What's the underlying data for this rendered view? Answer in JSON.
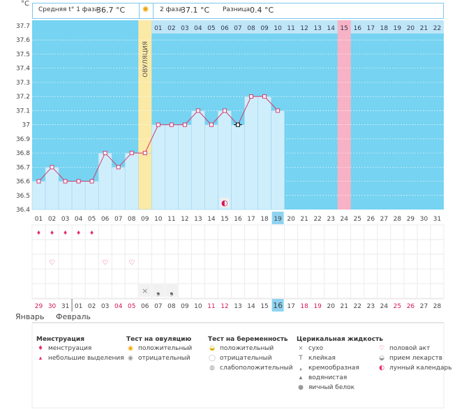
{
  "header": {
    "unit": "°C",
    "phase1_label": "Средняя t° 1 фаза",
    "phase1_value": "36.7 °C",
    "phase2_label": "2 фаза",
    "phase2_value": "37.1 °C",
    "diff_label": "Разница",
    "diff_value": "0.4 °C"
  },
  "chart_data": {
    "type": "line",
    "title": "",
    "ylabel": "°C",
    "ylim": [
      36.4,
      37.7
    ],
    "y_ticks": [
      "37.7",
      "37.6",
      "37.5",
      "37.4",
      "37.3",
      "37.2",
      "37.1",
      "37",
      "36.9",
      "36.8",
      "36.7",
      "36.6",
      "36.5",
      "36.4"
    ],
    "cycle_days": [
      "01",
      "02",
      "03",
      "04",
      "05",
      "06",
      "07",
      "08",
      "09",
      "10",
      "11",
      "12",
      "13",
      "14",
      "15",
      "16",
      "17",
      "18",
      "19",
      "20",
      "21",
      "22",
      "23",
      "24",
      "25",
      "26",
      "27",
      "28",
      "29",
      "30",
      "31"
    ],
    "post_ovulation_days": [
      "01",
      "02",
      "03",
      "04",
      "05",
      "06",
      "07",
      "08",
      "09",
      "10",
      "11",
      "12",
      "13",
      "14",
      "15",
      "16",
      "17",
      "18",
      "19",
      "20",
      "21",
      "22"
    ],
    "series": [
      {
        "name": "Базальная температура",
        "values": [
          36.6,
          36.7,
          36.6,
          36.6,
          36.6,
          36.8,
          36.7,
          36.8,
          36.8,
          37.0,
          37.0,
          37.0,
          37.1,
          37.0,
          37.1,
          37.0,
          37.2,
          37.2,
          37.1
        ]
      }
    ],
    "ovulation_day": 9,
    "ovulation_label": "ОВУЛЯЦИЯ",
    "highlight_day": 24,
    "today_day": 19,
    "moon_marker_day": 15,
    "menstruation_days": [
      1,
      2,
      3,
      4,
      5
    ],
    "sex_days": [
      2,
      6,
      8
    ],
    "fluid_marks": [
      {
        "day": 9,
        "type": "dry"
      },
      {
        "day": 10,
        "type": "creamy"
      },
      {
        "day": 11,
        "type": "creamy"
      }
    ],
    "calendar_dates": [
      "29",
      "30",
      "31",
      "01",
      "02",
      "03",
      "04",
      "05",
      "06",
      "07",
      "08",
      "09",
      "10",
      "11",
      "12",
      "13",
      "14",
      "15",
      "16",
      "17",
      "18",
      "19",
      "20",
      "21",
      "22",
      "23",
      "24",
      "25",
      "26",
      "27",
      "28"
    ],
    "red_date_days": [
      1,
      2,
      7,
      8,
      14,
      15,
      21,
      22,
      28,
      29
    ],
    "today_date_day": 19,
    "months": {
      "january": "Январь",
      "february": "Февраль"
    }
  },
  "legend": {
    "groups": [
      {
        "title": "Менструация",
        "items": [
          {
            "icon": "drop-large-icon",
            "glyph": "♦",
            "label": "менструация"
          },
          {
            "icon": "drop-small-icon",
            "glyph": "▴",
            "label": "небольшие выделения"
          }
        ]
      },
      {
        "title": "Тест на овуляцию",
        "items": [
          {
            "icon": "ovulation-positive-icon",
            "glyph": "◉",
            "label": "положительный"
          },
          {
            "icon": "ovulation-negative-icon",
            "glyph": "◉",
            "label": "отрицательный"
          }
        ]
      },
      {
        "title": "Тест на беременность",
        "items": [
          {
            "icon": "pregnancy-positive-icon",
            "glyph": "◒",
            "label": "положительный"
          },
          {
            "icon": "pregnancy-negative-icon",
            "glyph": "◯",
            "label": "отрицательный"
          },
          {
            "icon": "pregnancy-weak-icon",
            "glyph": "◍",
            "label": "слабоположительный"
          }
        ]
      },
      {
        "title": "Церикальная жидкость",
        "items": [
          {
            "icon": "dry-icon",
            "glyph": "×",
            "label": "сухо"
          },
          {
            "icon": "sticky-icon",
            "glyph": "T",
            "label": "клейкая"
          },
          {
            "icon": "creamy-icon",
            "glyph": "❟",
            "label": "кремообразная"
          },
          {
            "icon": "watery-icon",
            "glyph": "▴",
            "label": "водянистая"
          },
          {
            "icon": "egg-white-icon",
            "glyph": "●",
            "label": "яичный белок"
          }
        ]
      },
      {
        "title": "",
        "items": [
          {
            "icon": "heart-icon",
            "glyph": "♡",
            "label": "половой акт"
          },
          {
            "icon": "medicine-icon",
            "glyph": "◒",
            "label": "прием лекарств"
          },
          {
            "icon": "moon-icon",
            "glyph": "◐",
            "label": "лунный календарь"
          }
        ]
      }
    ]
  },
  "colors": {
    "sky": "#76d3f1",
    "bar": "#cfeefc",
    "bar_border": "#9fd6f0",
    "ovulation": "#fbe9a6",
    "highlight": "#f7b2c5",
    "today": "#8ed3f1",
    "line": "#d23c6e",
    "grid": "#ebebeb",
    "red_text": "#d4145a"
  }
}
